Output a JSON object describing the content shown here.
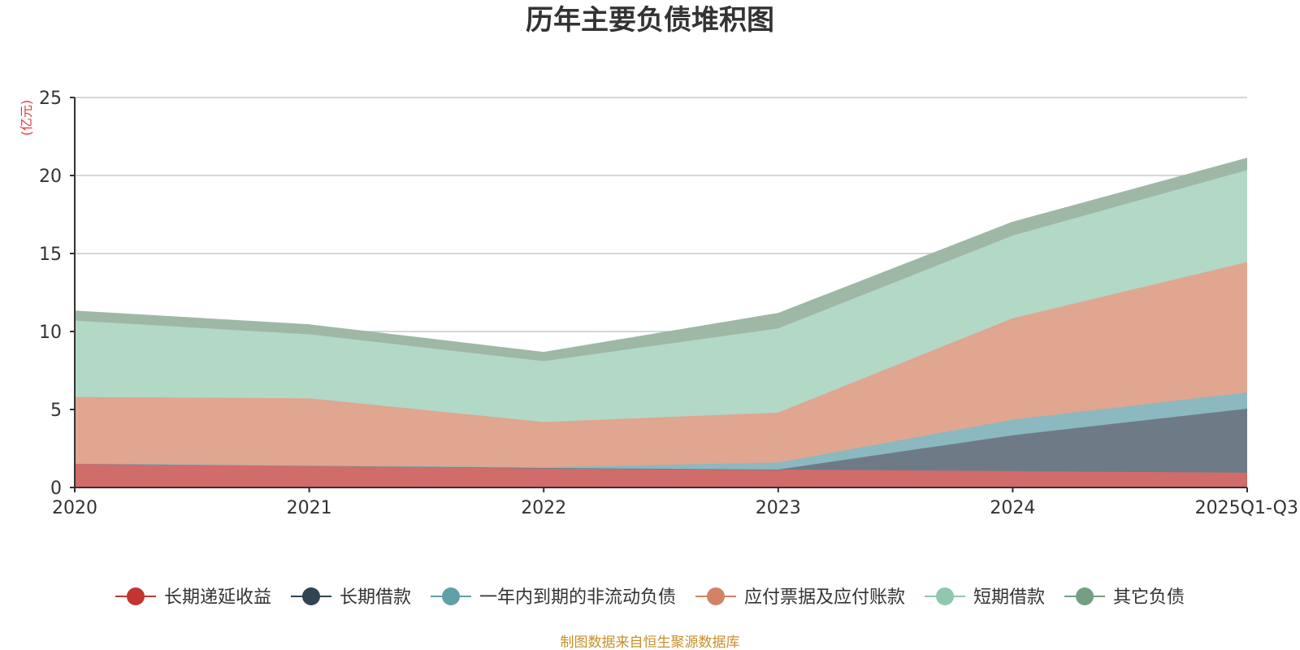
{
  "chart_data": {
    "type": "area",
    "stacked": true,
    "title": "历年主要负债堆积图",
    "ylabel": "(亿元)",
    "ylim": [
      0,
      25
    ],
    "yticks": [
      0,
      5,
      10,
      15,
      20,
      25
    ],
    "grid": true,
    "legend_position": "bottom",
    "categories": [
      "2020",
      "2021",
      "2022",
      "2023",
      "2024",
      "2025Q1-Q3"
    ],
    "series": [
      {
        "name": "长期递延收益",
        "color": "#c23531",
        "fill": "#d06c6a",
        "values": [
          1.55,
          1.42,
          1.25,
          1.15,
          1.05,
          0.95
        ]
      },
      {
        "name": "长期借款",
        "color": "#2f4554",
        "fill": "#6e7b86",
        "values": [
          0,
          0,
          0,
          0,
          2.3,
          4.1
        ]
      },
      {
        "name": "一年内到期的非流动负债",
        "color": "#61a0a8",
        "fill": "#8cb8bf",
        "values": [
          0,
          0,
          0.05,
          0.45,
          1.0,
          1.05
        ]
      },
      {
        "name": "应付票据及应付账款",
        "color": "#d48265",
        "fill": "#e0a690",
        "values": [
          4.25,
          4.3,
          2.9,
          3.2,
          6.5,
          8.35
        ]
      },
      {
        "name": "短期借款",
        "color": "#91c7ae",
        "fill": "#b2d8c6",
        "values": [
          4.9,
          4.1,
          3.9,
          5.4,
          5.3,
          5.9
        ]
      },
      {
        "name": "其它负债",
        "color": "#749f83",
        "fill": "#9eb8a5",
        "values": [
          0.6,
          0.6,
          0.55,
          0.95,
          0.85,
          0.75
        ]
      }
    ],
    "source": "制图数据来自恒生聚源数据库"
  }
}
